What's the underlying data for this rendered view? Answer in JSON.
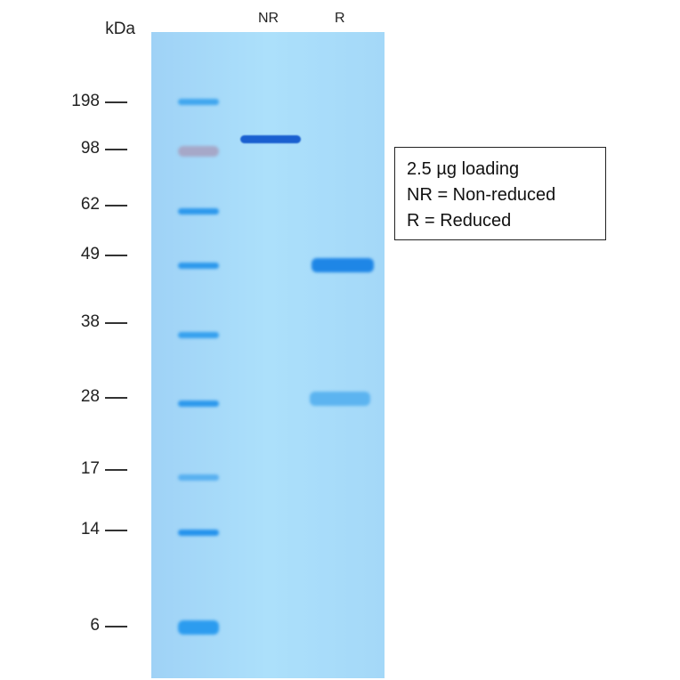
{
  "unit_label": "kDa",
  "lanes": [
    "NR",
    "R"
  ],
  "markers": [
    "198",
    "98",
    "62",
    "49",
    "38",
    "28",
    "17",
    "14",
    "6"
  ],
  "legend": [
    "2.5 µg loading",
    "NR = Non-reduced",
    "R = Reduced"
  ],
  "colors": {
    "gel": "#a8dbf9",
    "band": "#1e90e8",
    "strong_band": "#1a66d0"
  }
}
